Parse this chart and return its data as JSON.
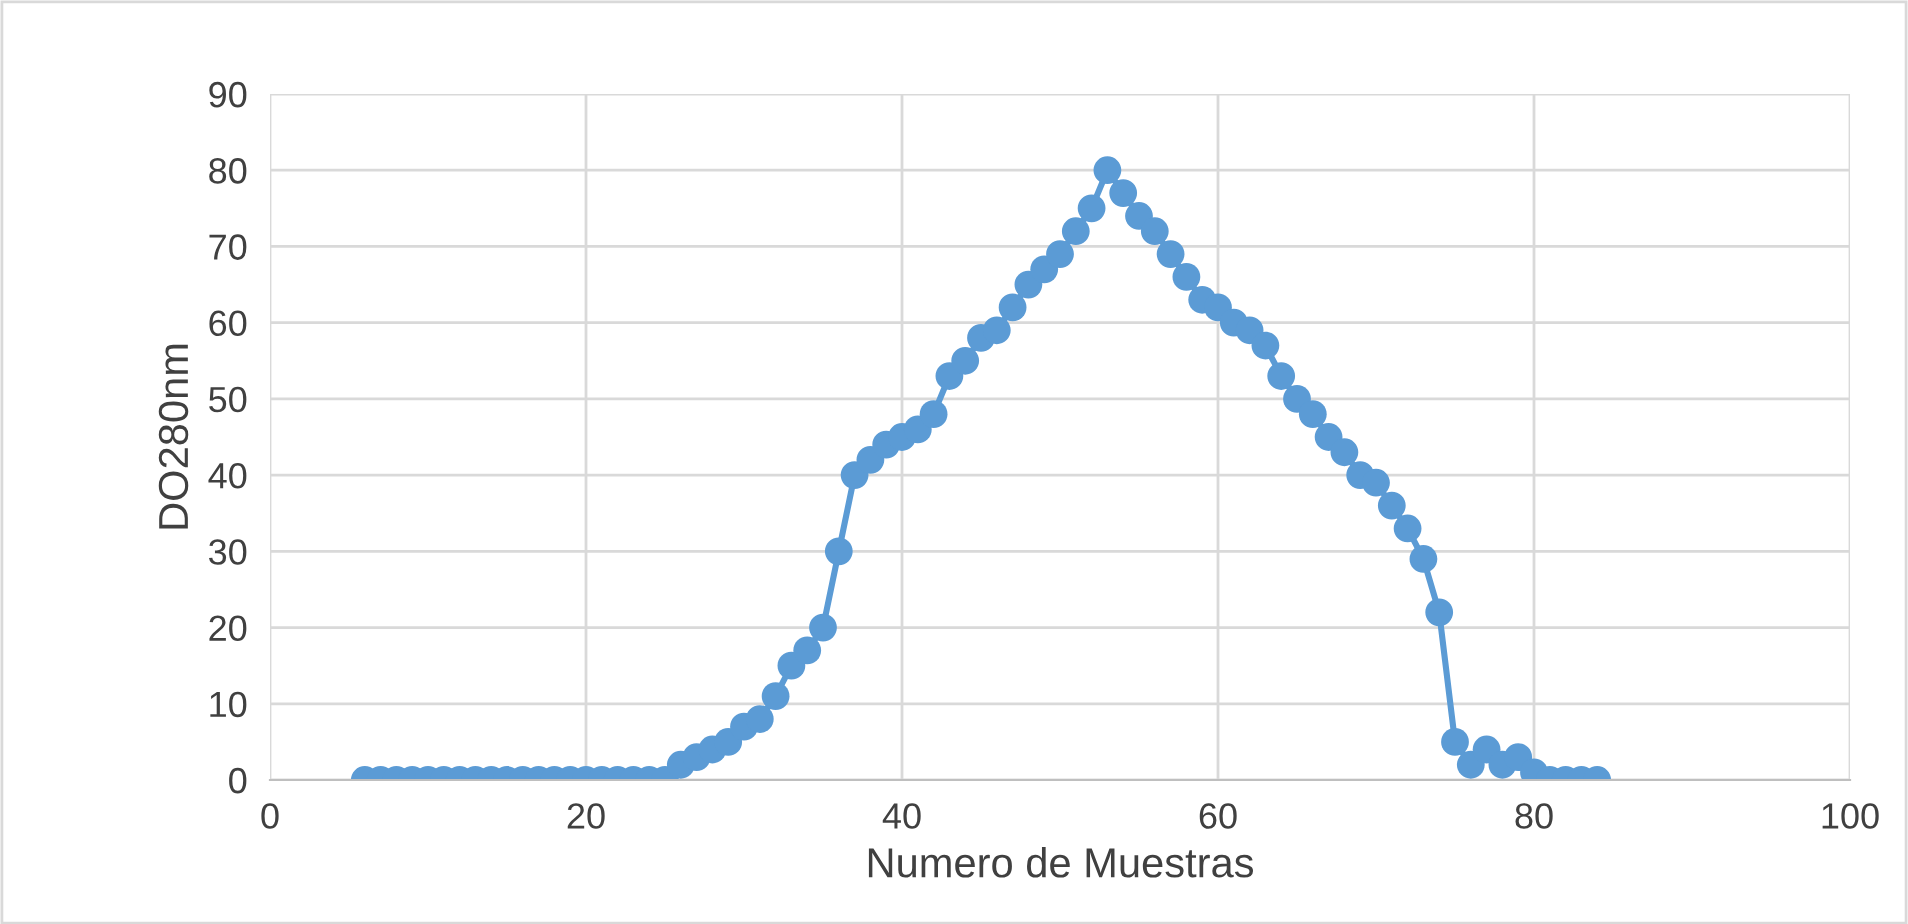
{
  "chart_data": {
    "type": "line",
    "xlabel": "Numero de Muestras",
    "ylabel": "DO280nm",
    "x": [
      6,
      7,
      8,
      9,
      10,
      11,
      12,
      13,
      14,
      15,
      16,
      17,
      18,
      19,
      20,
      21,
      22,
      23,
      24,
      25,
      26,
      27,
      28,
      29,
      30,
      31,
      32,
      33,
      34,
      35,
      36,
      37,
      38,
      39,
      40,
      41,
      42,
      43,
      44,
      45,
      46,
      47,
      48,
      49,
      50,
      51,
      52,
      53,
      54,
      55,
      56,
      57,
      58,
      59,
      60,
      61,
      62,
      63,
      64,
      65,
      66,
      67,
      68,
      69,
      70,
      71,
      72,
      73,
      74,
      75,
      76,
      77,
      78,
      79,
      80,
      81,
      82,
      83,
      84
    ],
    "series": [
      {
        "color": "#5b9bd5",
        "values": [
          0,
          0,
          0,
          0,
          0,
          0,
          0,
          0,
          0,
          0,
          0,
          0,
          0,
          0,
          0,
          0,
          0,
          0,
          0,
          0,
          2,
          3,
          4,
          5,
          7,
          8,
          11,
          15,
          17,
          20,
          30,
          40,
          42,
          44,
          45,
          46,
          48,
          53,
          55,
          58,
          59,
          62,
          65,
          67,
          69,
          72,
          75,
          80,
          77,
          74,
          72,
          69,
          66,
          63,
          62,
          60,
          59,
          57,
          53,
          50,
          48,
          45,
          43,
          40,
          39,
          36,
          33,
          29,
          22,
          5,
          2,
          4,
          2,
          3,
          1,
          0,
          0,
          0,
          0
        ]
      }
    ],
    "xlim": [
      0,
      100
    ],
    "xticks": [
      0,
      20,
      40,
      60,
      80,
      100
    ],
    "ylim": [
      0,
      90
    ],
    "yticks": [
      0,
      10,
      20,
      30,
      40,
      50,
      60,
      70,
      80,
      90
    ],
    "grid": true,
    "marker": "circle",
    "line_style": "solid"
  }
}
